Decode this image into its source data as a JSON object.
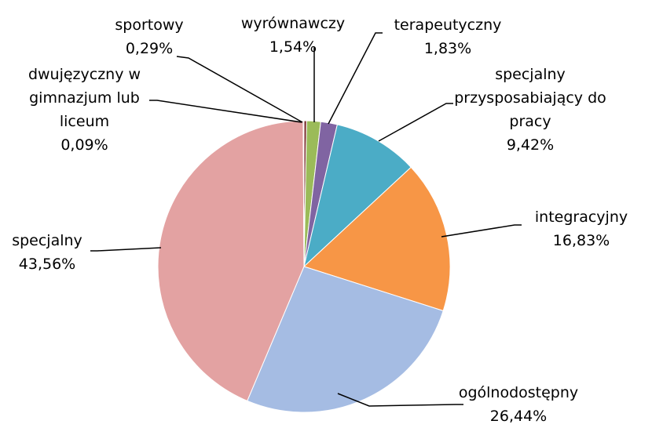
{
  "chart_data": {
    "type": "pie",
    "categories": [
      "sportowy",
      "wyrównawczy",
      "terapeutyczny",
      "specjalny przysposabiający do pracy",
      "integracyjny",
      "ogólnodostępny",
      "specjalny",
      "dwujęzyczny  w gimnazjum lub liceum"
    ],
    "values": [
      0.29,
      1.54,
      1.83,
      9.42,
      16.83,
      26.44,
      43.56,
      0.09
    ],
    "value_labels": [
      "0,29%",
      "1,54%",
      "1,83%",
      "9,42%",
      "16,83%",
      "26,44%",
      "43,56%",
      "0,09%"
    ],
    "colors": [
      "#7b2c2c",
      "#9bbb59",
      "#8064a2",
      "#4bacc6",
      "#f79646",
      "#a5bce3",
      "#e3a2a2",
      "#3a3a6a"
    ]
  }
}
